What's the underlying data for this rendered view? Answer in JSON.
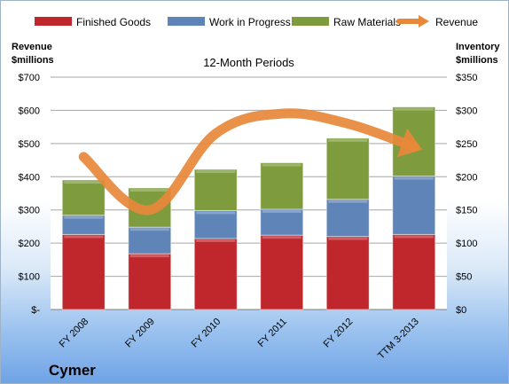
{
  "chart_data": {
    "type": "bar",
    "title": "12-Month Periods",
    "company": "Cymer",
    "categories": [
      "FY 2008",
      "FY 2009",
      "FY 2010",
      "FY 2011",
      "FY 2012",
      "TTM 3-2013"
    ],
    "series": [
      {
        "name": "Finished Goods",
        "axis": "right",
        "stacked": true,
        "color": "#c0272d",
        "values": [
          113,
          84,
          107,
          112,
          110,
          113
        ]
      },
      {
        "name": "Work in Progress",
        "axis": "right",
        "stacked": true,
        "color": "#5f84b8",
        "values": [
          29,
          40,
          42,
          39,
          56,
          88
        ]
      },
      {
        "name": "Raw Materials",
        "axis": "right",
        "stacked": true,
        "color": "#7e9c3d",
        "values": [
          53,
          59,
          62,
          70,
          92,
          104
        ]
      },
      {
        "name": "Revenue",
        "axis": "left",
        "type": "line",
        "color": "#e8883a",
        "values": [
          460,
          300,
          530,
          590,
          560,
          490
        ]
      }
    ],
    "ylabel_left": "Revenue\n$millions",
    "ylabel_right": "Inventory\n$millions",
    "ylim_left": [
      0,
      700
    ],
    "ylim_right": [
      0,
      350
    ],
    "yticks_left": [
      "$-",
      "$100",
      "$200",
      "$300",
      "$400",
      "$500",
      "$600",
      "$700"
    ],
    "yticks_right": [
      "$0",
      "$50",
      "$100",
      "$150",
      "$200",
      "$250",
      "$300",
      "$350"
    ],
    "grid": true,
    "legend_position": "top"
  }
}
